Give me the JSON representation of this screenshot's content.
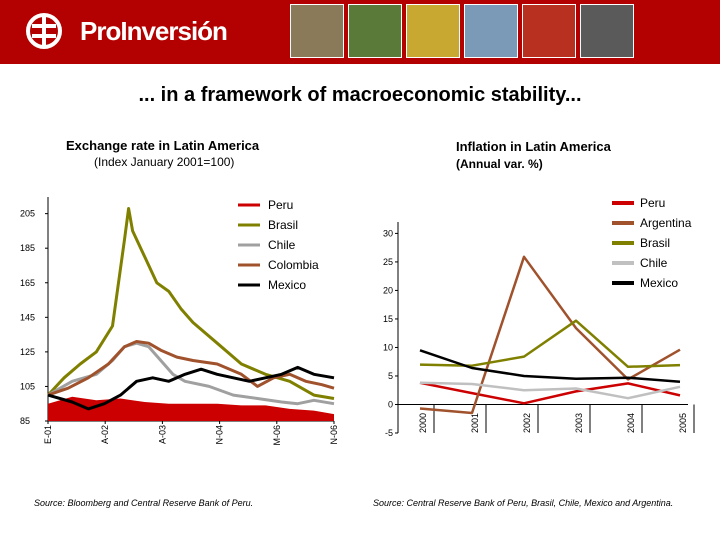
{
  "header": {
    "brand": "ProInversión",
    "photos": [
      {
        "name": "photo-stone-wall",
        "color": "#8a7a5a"
      },
      {
        "name": "photo-field",
        "color": "#5a7a3a"
      },
      {
        "name": "photo-produce",
        "color": "#c8a830"
      },
      {
        "name": "photo-airplane",
        "color": "#7a9ab8"
      },
      {
        "name": "photo-peppers",
        "color": "#b83020"
      },
      {
        "name": "photo-highway",
        "color": "#5a5a5a"
      }
    ]
  },
  "slide": {
    "title": "... in a framework of macroeconomic stability..."
  },
  "sources": {
    "left": "Source: Bloomberg and Central Reserve Bank of Peru.",
    "right": "Source: Central Reserve Bank of Peru, Brasil, Chile, Mexico and  Argentina."
  },
  "chart_data": [
    {
      "type": "line",
      "title": "Exchange rate in Latin America",
      "subtitle": "(Index January 2001=100)",
      "x_tick_labels": [
        "E-01",
        "A-02",
        "A-03",
        "N-04",
        "M-06",
        "N-06"
      ],
      "y_ticks": [
        85,
        105,
        125,
        145,
        165,
        185,
        205
      ],
      "ylim": [
        85,
        210
      ],
      "xlim": [
        0,
        71
      ],
      "grid": false,
      "legend_position": "top-right",
      "series": [
        {
          "name": "Peru",
          "color": "#cc0000",
          "points": [
            [
              0,
              95
            ],
            [
              6,
              99
            ],
            [
              12,
              97
            ],
            [
              18,
              98
            ],
            [
              24,
              96
            ],
            [
              30,
              95
            ],
            [
              36,
              95
            ],
            [
              42,
              95
            ],
            [
              48,
              94
            ],
            [
              54,
              94
            ],
            [
              60,
              92
            ],
            [
              66,
              91
            ],
            [
              71,
              89
            ]
          ]
        },
        {
          "name": "Brasil",
          "color": "#808000",
          "points": [
            [
              0,
              100
            ],
            [
              4,
              110
            ],
            [
              8,
              118
            ],
            [
              12,
              125
            ],
            [
              16,
              140
            ],
            [
              19,
              190
            ],
            [
              20,
              208
            ],
            [
              21,
              195
            ],
            [
              24,
              180
            ],
            [
              27,
              165
            ],
            [
              30,
              160
            ],
            [
              33,
              150
            ],
            [
              36,
              142
            ],
            [
              42,
              130
            ],
            [
              48,
              118
            ],
            [
              54,
              112
            ],
            [
              60,
              108
            ],
            [
              66,
              100
            ],
            [
              71,
              98
            ]
          ]
        },
        {
          "name": "Chile",
          "color": "#a0a0a0",
          "points": [
            [
              0,
              100
            ],
            [
              6,
              108
            ],
            [
              12,
              112
            ],
            [
              16,
              120
            ],
            [
              19,
              128
            ],
            [
              22,
              130
            ],
            [
              25,
              128
            ],
            [
              28,
              120
            ],
            [
              31,
              112
            ],
            [
              34,
              108
            ],
            [
              40,
              105
            ],
            [
              46,
              100
            ],
            [
              52,
              98
            ],
            [
              58,
              96
            ],
            [
              62,
              95
            ],
            [
              66,
              97
            ],
            [
              71,
              95
            ]
          ]
        },
        {
          "name": "Colombia",
          "color": "#a0522d",
          "points": [
            [
              0,
              100
            ],
            [
              5,
              104
            ],
            [
              10,
              110
            ],
            [
              15,
              118
            ],
            [
              19,
              128
            ],
            [
              22,
              131
            ],
            [
              25,
              130
            ],
            [
              28,
              126
            ],
            [
              32,
              122
            ],
            [
              36,
              120
            ],
            [
              42,
              118
            ],
            [
              48,
              112
            ],
            [
              52,
              105
            ],
            [
              56,
              110
            ],
            [
              60,
              112
            ],
            [
              64,
              108
            ],
            [
              68,
              106
            ],
            [
              71,
              104
            ]
          ]
        },
        {
          "name": "Mexico",
          "color": "#000000",
          "points": [
            [
              0,
              100
            ],
            [
              6,
              96
            ],
            [
              10,
              92
            ],
            [
              14,
              95
            ],
            [
              18,
              100
            ],
            [
              22,
              108
            ],
            [
              26,
              110
            ],
            [
              30,
              108
            ],
            [
              34,
              112
            ],
            [
              38,
              115
            ],
            [
              42,
              112
            ],
            [
              46,
              110
            ],
            [
              50,
              108
            ],
            [
              54,
              110
            ],
            [
              58,
              112
            ],
            [
              62,
              116
            ],
            [
              66,
              112
            ],
            [
              71,
              110
            ]
          ]
        }
      ]
    },
    {
      "type": "line",
      "title": "Inflation in Latin America",
      "subtitle": "(Annual var. %)",
      "x": [
        "2000",
        "2001",
        "2002",
        "2003",
        "2004",
        "2005"
      ],
      "y_ticks": [
        -5,
        0,
        5,
        10,
        15,
        20,
        25,
        30
      ],
      "ylim": [
        -5,
        32
      ],
      "grid": false,
      "legend_position": "top-right",
      "series": [
        {
          "name": "Peru",
          "color": "#cc0000",
          "values": [
            3.8,
            2.0,
            0.2,
            2.3,
            3.7,
            1.6
          ]
        },
        {
          "name": "Argentina",
          "color": "#a0522d",
          "values": [
            -0.7,
            -1.5,
            25.9,
            13.4,
            4.4,
            9.6
          ]
        },
        {
          "name": "Brasil",
          "color": "#808000",
          "values": [
            7.0,
            6.8,
            8.4,
            14.7,
            6.6,
            6.9
          ]
        },
        {
          "name": "Chile",
          "color": "#c0c0c0",
          "values": [
            3.8,
            3.6,
            2.5,
            2.8,
            1.1,
            3.1
          ]
        },
        {
          "name": "Mexico",
          "color": "#000000",
          "values": [
            9.5,
            6.4,
            5.0,
            4.5,
            4.7,
            4.0
          ]
        }
      ]
    }
  ]
}
